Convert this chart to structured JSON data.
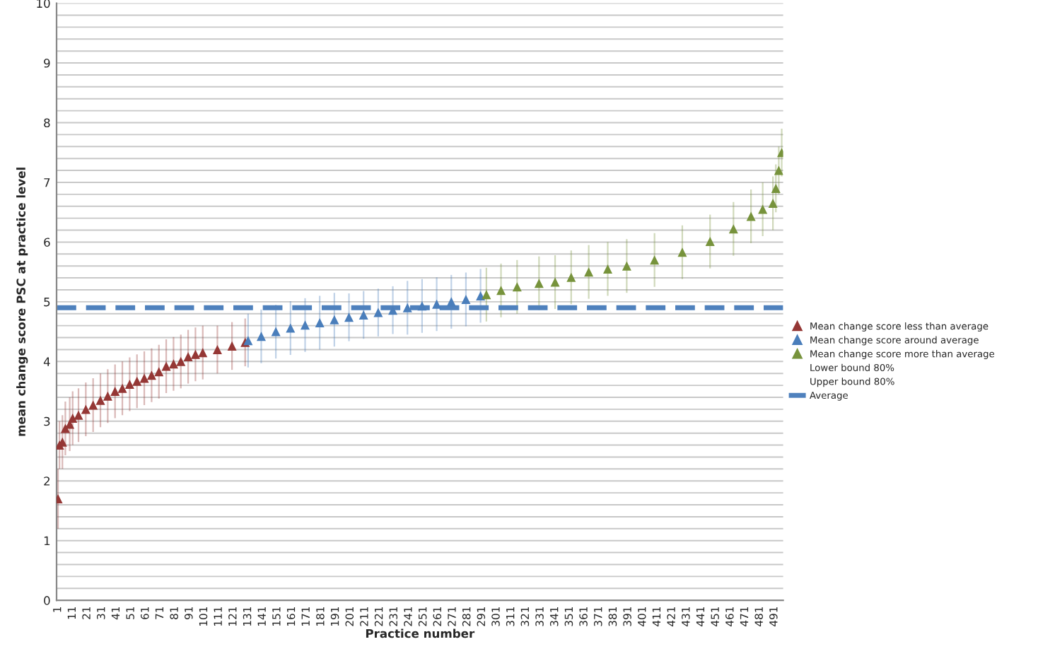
{
  "chart_data": {
    "type": "scatter",
    "xlabel": "Practice number",
    "ylabel": "mean change score PSC at practice level",
    "marker": "triangle",
    "grid": "y",
    "legend": "right",
    "xlim": [
      0,
      497
    ],
    "xticks": [
      1,
      11,
      21,
      31,
      41,
      51,
      61,
      71,
      81,
      91,
      101,
      111,
      121,
      131,
      141,
      151,
      161,
      171,
      181,
      191,
      201,
      211,
      221,
      231,
      241,
      251,
      261,
      271,
      281,
      291,
      301,
      311,
      321,
      331,
      341,
      351,
      361,
      371,
      381,
      391,
      401,
      411,
      421,
      431,
      441,
      451,
      461,
      471,
      481,
      491
    ],
    "ylim": [
      0,
      10
    ],
    "yticks": [
      0,
      {
        "value": 0.2,
        "label": null
      },
      {
        "value": 0.4,
        "label": null
      },
      {
        "value": 0.6,
        "label": null
      },
      {
        "value": 0.8,
        "label": null
      },
      1,
      {
        "value": 1.2,
        "label": null
      },
      {
        "value": 1.4,
        "label": null
      },
      {
        "value": 1.6,
        "label": null
      },
      {
        "value": 1.8,
        "label": null
      },
      2,
      {
        "value": 2.2,
        "label": null
      },
      {
        "value": 2.4,
        "label": null
      },
      {
        "value": 2.6,
        "label": null
      },
      {
        "value": 2.8,
        "label": null
      },
      3,
      {
        "value": 3.2,
        "label": null
      },
      {
        "value": 3.4,
        "label": null
      },
      {
        "value": 3.6,
        "label": null
      },
      {
        "value": 3.8,
        "label": null
      },
      4,
      {
        "value": 4.2,
        "label": null
      },
      {
        "value": 4.4,
        "label": null
      },
      {
        "value": 4.6,
        "label": null
      },
      {
        "value": 4.8,
        "label": null
      },
      5,
      {
        "value": 5.2,
        "label": null
      },
      {
        "value": 5.4,
        "label": null
      },
      {
        "value": 5.6,
        "label": null
      },
      {
        "value": 5.8,
        "label": null
      },
      6,
      {
        "value": 6.2,
        "label": null
      },
      {
        "value": 6.4,
        "label": null
      },
      {
        "value": 6.6,
        "label": null
      },
      {
        "value": 6.8,
        "label": null
      },
      7,
      {
        "value": 7.2,
        "label": null
      },
      {
        "value": 7.4,
        "label": null
      },
      {
        "value": 7.6,
        "label": null
      },
      {
        "value": 7.8,
        "label": null
      },
      8,
      {
        "value": 8.2,
        "label": null
      },
      {
        "value": 8.4,
        "label": null
      },
      {
        "value": 8.6,
        "label": null
      },
      {
        "value": 8.8,
        "label": null
      },
      9,
      {
        "value": 9.2,
        "label": null
      },
      {
        "value": 9.4,
        "label": null
      },
      {
        "value": 9.6,
        "label": null
      },
      {
        "value": 9.8,
        "label": null
      },
      10
    ],
    "series": [
      {
        "name": "Mean change score less than average",
        "color": "#953735",
        "x": [
          1,
          2,
          4,
          6,
          9,
          11,
          15,
          20,
          25,
          30,
          35,
          40,
          45,
          50,
          55,
          60,
          65,
          70,
          75,
          80,
          85,
          90,
          95,
          100,
          110,
          120,
          129
        ],
        "values": [
          1.7,
          2.6,
          2.65,
          2.88,
          2.95,
          3.05,
          3.1,
          3.2,
          3.27,
          3.35,
          3.42,
          3.5,
          3.55,
          3.62,
          3.67,
          3.72,
          3.77,
          3.83,
          3.92,
          3.96,
          4.0,
          4.08,
          4.12,
          4.15,
          4.2,
          4.26,
          4.32
        ],
        "errors": [
          0.5,
          0.4,
          0.45,
          0.45,
          0.45,
          0.45,
          0.45,
          0.45,
          0.45,
          0.45,
          0.45,
          0.45,
          0.45,
          0.45,
          0.45,
          0.45,
          0.45,
          0.45,
          0.45,
          0.45,
          0.45,
          0.45,
          0.45,
          0.45,
          0.4,
          0.4,
          0.4
        ]
      },
      {
        "name": "Mean change score around average",
        "color": "#4a7ebb",
        "x": [
          131,
          140,
          150,
          160,
          170,
          180,
          190,
          200,
          210,
          220,
          230,
          240,
          250,
          260,
          270,
          280,
          290
        ],
        "values": [
          4.35,
          4.42,
          4.5,
          4.56,
          4.61,
          4.65,
          4.7,
          4.74,
          4.78,
          4.82,
          4.86,
          4.9,
          4.93,
          4.96,
          5.0,
          5.04,
          5.1
        ],
        "errors": [
          0.45,
          0.45,
          0.45,
          0.45,
          0.45,
          0.45,
          0.45,
          0.4,
          0.4,
          0.4,
          0.4,
          0.45,
          0.45,
          0.45,
          0.45,
          0.45,
          0.45
        ]
      },
      {
        "name": "Mean change score more than average",
        "color": "#77933c",
        "x": [
          294,
          304,
          315,
          330,
          341,
          352,
          364,
          377,
          390,
          409,
          428,
          447,
          463,
          475,
          483,
          490,
          492,
          494,
          496
        ],
        "values": [
          5.12,
          5.19,
          5.25,
          5.31,
          5.33,
          5.41,
          5.5,
          5.55,
          5.6,
          5.7,
          5.83,
          6.01,
          6.22,
          6.43,
          6.55,
          6.65,
          6.9,
          7.2,
          7.5
        ],
        "errors": [
          0.45,
          0.45,
          0.45,
          0.45,
          0.45,
          0.45,
          0.45,
          0.45,
          0.45,
          0.45,
          0.45,
          0.45,
          0.45,
          0.45,
          0.45,
          0.45,
          0.4,
          0.4,
          0.4
        ]
      }
    ],
    "ref_lines": [
      {
        "axis": "y",
        "value": 4.9,
        "label": "Average",
        "color": "#4f81bd",
        "line_style": "dashed"
      }
    ],
    "annotations": [
      "Lower bound 80%",
      "Upper bound 80%"
    ]
  }
}
